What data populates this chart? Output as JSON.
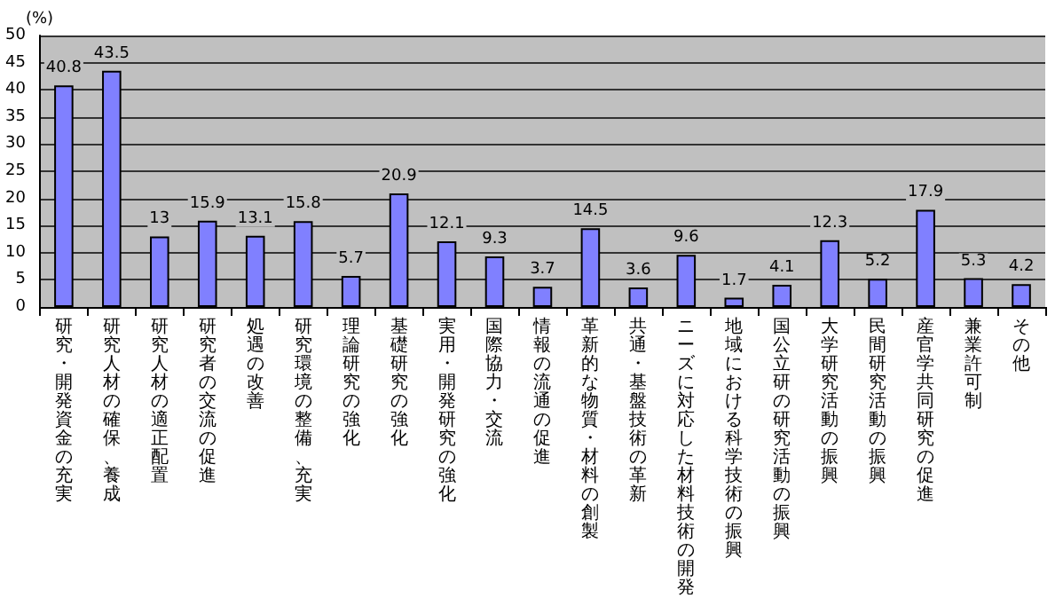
{
  "chart_data": {
    "type": "bar",
    "ylabel": "(%)",
    "categories": [
      "研究・開発資金の充実",
      "研究人材の確保、養成",
      "研究人材の適正配置",
      "研究者の交流の促進",
      "処遇の改善",
      "研究環境の整備、充実",
      "理論研究の強化",
      "基礎研究の強化",
      "実用・開発研究の強化",
      "国際協力・交流",
      "情報の流通の促進",
      "革新的な物質・材料の創製",
      "共通・基盤技術の革新",
      "ニーズに対応した材料技術の開発",
      "地域における科学技術の振興",
      "国公立研の研究活動の振興",
      "大学研究活動の振興",
      "民間研究活動の振興",
      "産官学共同研究の促進",
      "兼業許可制",
      "その他"
    ],
    "values": [
      40.8,
      43.5,
      13,
      15.9,
      13.1,
      15.8,
      5.7,
      20.9,
      12.1,
      9.3,
      3.7,
      14.5,
      3.6,
      9.6,
      1.7,
      4.1,
      12.3,
      5.2,
      17.9,
      5.3,
      4.2
    ],
    "color": "#8080ff",
    "ylim": [
      0,
      50
    ],
    "yticks": [
      0,
      5,
      10,
      15,
      20,
      25,
      30,
      35,
      40,
      45,
      50
    ],
    "grid": "y",
    "data_labels": true
  }
}
